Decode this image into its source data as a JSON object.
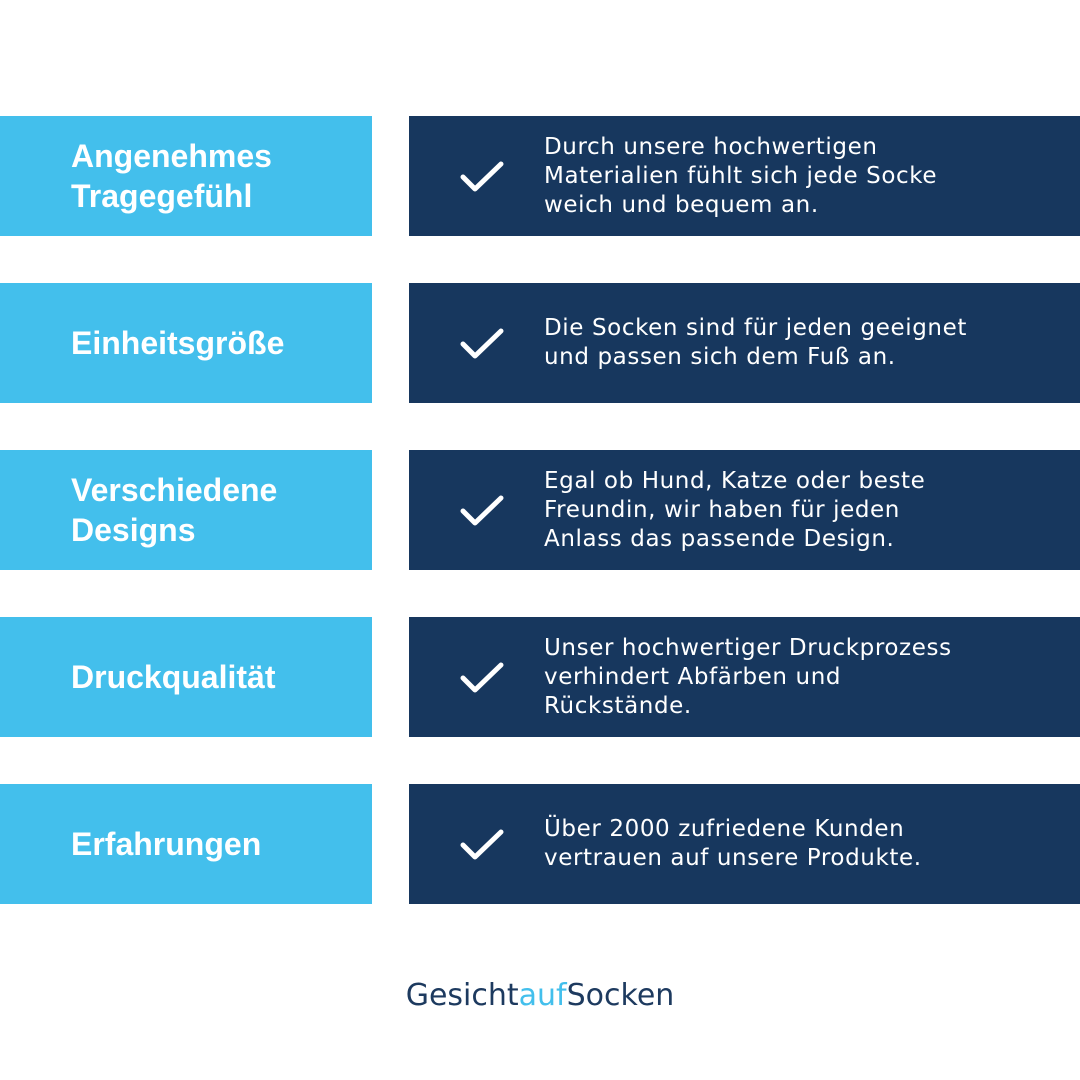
{
  "features": [
    {
      "title": "Angenehmes\nTragegefühl",
      "text": "Durch unsere hochwertigen\nMaterialien fühlt sich jede Socke\nweich und bequem an."
    },
    {
      "title": "Einheitsgröße",
      "text": "Die Socken sind für jeden geeignet\nund passen sich dem Fuß an."
    },
    {
      "title": "Verschiedene\nDesigns",
      "text": "Egal ob Hund, Katze oder beste\nFreundin, wir haben für jeden\nAnlass das passende Design."
    },
    {
      "title": "Druckqualität",
      "text": "Unser hochwertiger Druckprozess\nverhindert Abfärben und\nRückstände."
    },
    {
      "title": "Erfahrungen",
      "text": "Über 2000 zufriedene Kunden\nvertrauen auf unsere Produkte."
    }
  ],
  "logo": {
    "part1": "Gesicht",
    "part2": "auf",
    "part3": "Socken"
  },
  "colors": {
    "light": "#43bfec",
    "dark": "#17375e"
  },
  "icon": "check-icon"
}
